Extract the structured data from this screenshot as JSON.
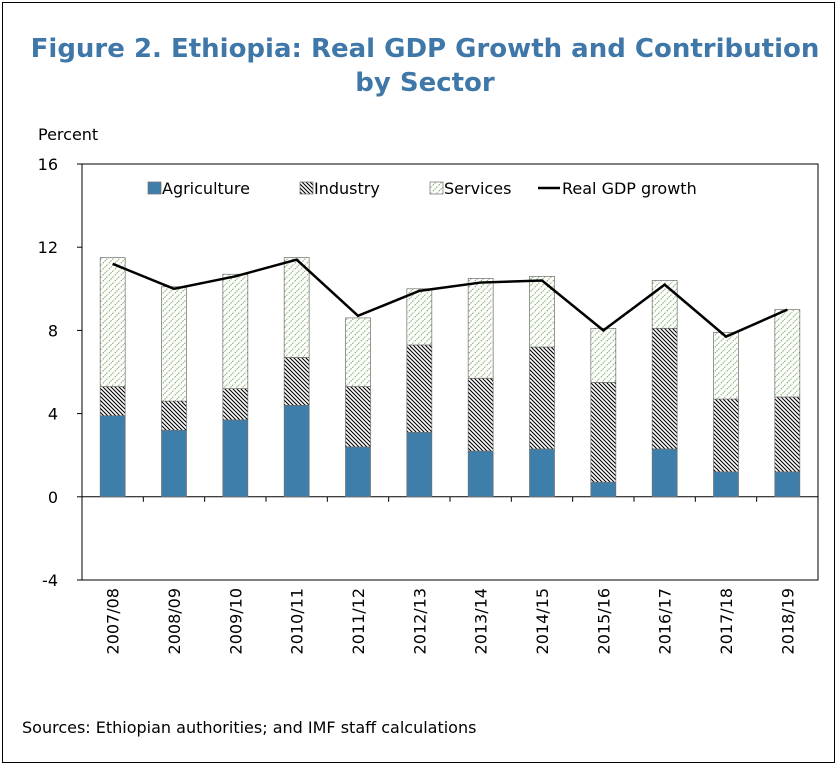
{
  "title": "Figure 2. Ethiopia: Real GDP Growth and Contribution by Sector",
  "source": "Sources: Ethiopian authorities; and IMF staff calculations",
  "colors": {
    "agriculture": "#3d7eab",
    "industry_hatch": "#000000",
    "services_hatch": "#7aa861",
    "line": "#000000",
    "title": "#3f78a8"
  },
  "chart_data": {
    "type": "bar",
    "stacked": true,
    "ylabel": "Percent",
    "ylim": [
      -4,
      16
    ],
    "yticks": [
      -4,
      0,
      4,
      8,
      12,
      16
    ],
    "legend_position": "top",
    "categories": [
      "2007/08",
      "2008/09",
      "2009/10",
      "2010/11",
      "2011/12",
      "2012/13",
      "2013/14",
      "2014/15",
      "2015/16",
      "2016/17",
      "2017/18",
      "2018/19"
    ],
    "series": [
      {
        "name": "Agriculture",
        "kind": "bar",
        "values": [
          3.9,
          3.2,
          3.7,
          4.4,
          2.4,
          3.1,
          2.2,
          2.3,
          0.7,
          2.3,
          1.2,
          1.2
        ]
      },
      {
        "name": "Industry",
        "kind": "bar",
        "values": [
          1.4,
          1.4,
          1.5,
          2.3,
          2.9,
          4.2,
          3.5,
          4.9,
          4.8,
          5.8,
          3.5,
          3.6
        ]
      },
      {
        "name": "Services",
        "kind": "bar",
        "values": [
          6.2,
          5.5,
          5.5,
          4.8,
          3.3,
          2.7,
          4.8,
          3.4,
          2.6,
          2.3,
          3.2,
          4.2
        ]
      },
      {
        "name": "Real GDP growth",
        "kind": "line",
        "values": [
          11.2,
          10.0,
          10.6,
          11.4,
          8.7,
          9.9,
          10.3,
          10.4,
          8.0,
          10.2,
          7.7,
          9.0
        ]
      }
    ]
  }
}
